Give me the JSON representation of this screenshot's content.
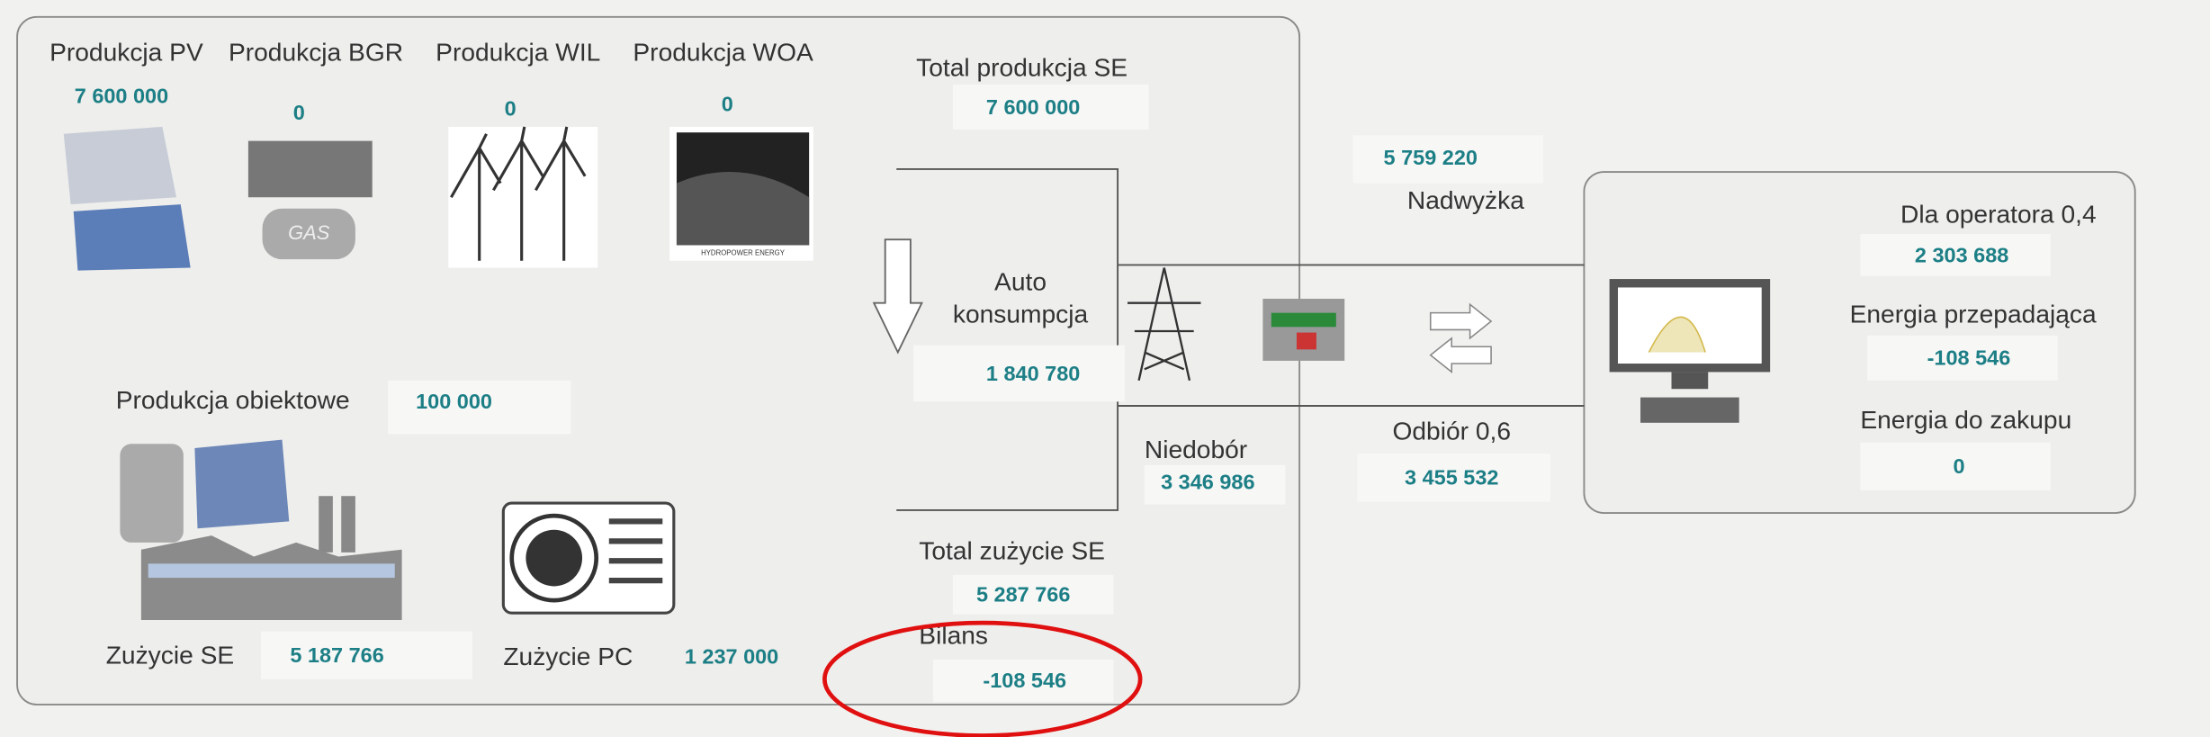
{
  "production": [
    {
      "label": "Produkcja PV",
      "value": "7 600 000"
    },
    {
      "label": "Produkcja BGR",
      "value": "0"
    },
    {
      "label": "Produkcja WIL",
      "value": "0"
    },
    {
      "label": "Produkcja WOA",
      "value": "0"
    }
  ],
  "icons": {
    "gas": "GAS",
    "hydro": "HYDROPOWER ENERGY"
  },
  "total_production": {
    "label": "Total produkcja SE",
    "value": "7 600 000"
  },
  "autoconsumption": {
    "label_lines": [
      "Auto",
      "konsumpcja"
    ],
    "value": "1 840 780"
  },
  "object_production": {
    "label": "Produkcja obiektowe",
    "value": "100 000"
  },
  "consumption_se": {
    "label": "Zużycie SE",
    "value": "5 187 766"
  },
  "consumption_pc": {
    "label": "Zużycie PC",
    "value": "1 237 000"
  },
  "total_consumption": {
    "label": "Total zużycie SE",
    "value": "5 287 766"
  },
  "balance": {
    "label": "Bilans",
    "value": "-108 546"
  },
  "shortage": {
    "label": "Niedobór",
    "value": "3 346 986"
  },
  "surplus": {
    "label": "Nadwyżka",
    "value": "5 759 220"
  },
  "intake": {
    "label": "Odbiór 0,6",
    "value": "3 455 532"
  },
  "operator": {
    "label": "Dla operatora 0,4",
    "value": "2 303 688"
  },
  "energy_lost": {
    "label": "Energia przepadająca",
    "value": "-108 546"
  },
  "energy_purchase": {
    "label": "Energia do zakupu",
    "value": "0"
  }
}
